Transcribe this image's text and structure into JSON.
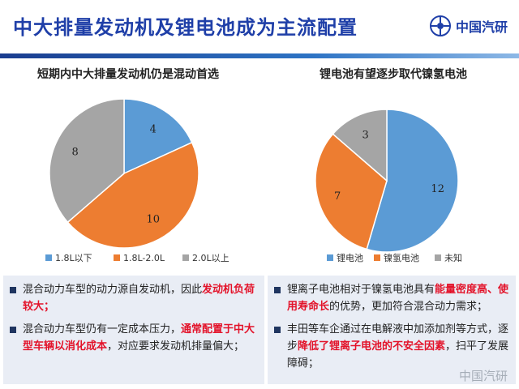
{
  "header": {
    "title": "中大排量发动机及锂电池成为主流配置",
    "logo_text": "中国汽研"
  },
  "chart_data": [
    {
      "type": "pie",
      "title": "短期内中大排量发动机仍是混动首选",
      "categories": [
        "1.8L以下",
        "1.8L-2.0L",
        "2.0L以上"
      ],
      "values": [
        4,
        10,
        8
      ],
      "colors": [
        "#5b9bd5",
        "#ed7d31",
        "#a5a5a5"
      ],
      "legend": "bottom"
    },
    {
      "type": "pie",
      "title": "锂电池有望逐步取代镍氢电池",
      "categories": [
        "锂电池",
        "镍氢电池",
        "未知"
      ],
      "values": [
        12,
        7,
        3
      ],
      "colors": [
        "#5b9bd5",
        "#ed7d31",
        "#a5a5a5"
      ],
      "legend": "bottom"
    }
  ],
  "left_panel": {
    "bullets": [
      [
        {
          "text": "混合动力车型的动力源自发动机，因此",
          "hl": false
        },
        {
          "text": "发动机负荷较大；",
          "hl": true
        }
      ],
      [
        {
          "text": "混合动力车型仍有一定成本压力，",
          "hl": false
        },
        {
          "text": "通常配置于中大型车辆以消化成本",
          "hl": true
        },
        {
          "text": "，对应要求发动机排量偏大；",
          "hl": false
        }
      ]
    ]
  },
  "right_panel": {
    "bullets": [
      [
        {
          "text": "锂离子电池相对于镍氢电池具有",
          "hl": false
        },
        {
          "text": "能量密度高、使用寿命长",
          "hl": true
        },
        {
          "text": "的优势，更加符合混合动力需求；",
          "hl": false
        }
      ],
      [
        {
          "text": "丰田等车企通过在电解液中加添加剂等方式，逐步",
          "hl": false
        },
        {
          "text": "降低了锂离子电池的不安全因素",
          "hl": true
        },
        {
          "text": "，扫平了发展障碍；",
          "hl": false
        }
      ]
    ]
  },
  "watermark": "中国汽研"
}
